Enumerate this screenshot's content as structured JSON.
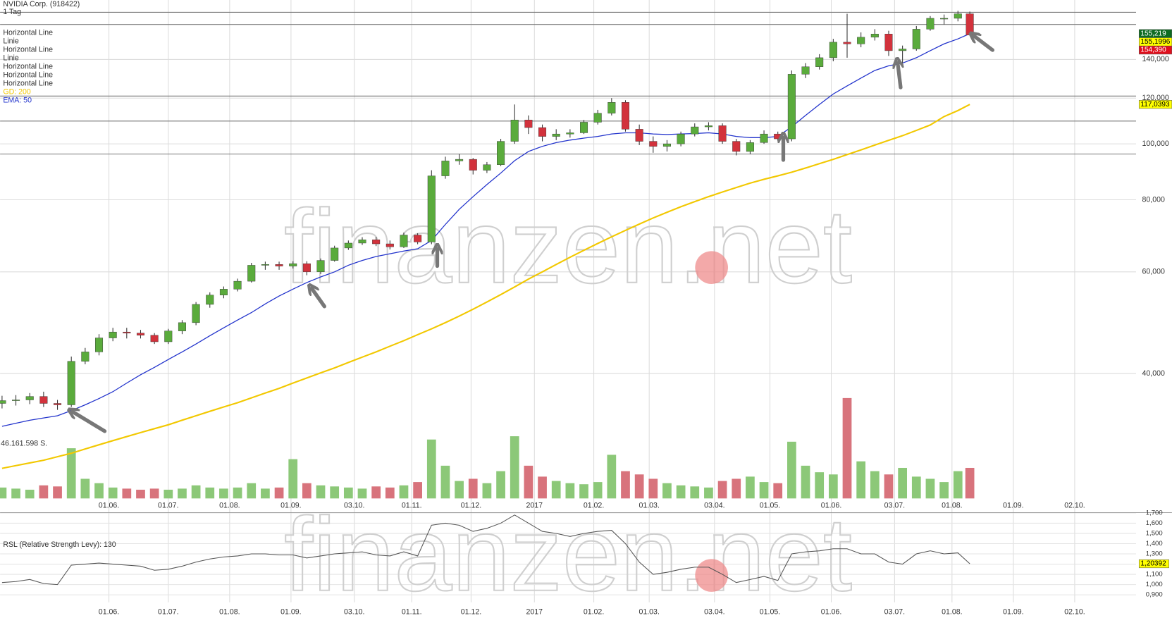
{
  "chart_data": [
    {
      "type": "candlestick",
      "title": "NVIDIA Corp. (918422)",
      "subtitle": "1 Tag",
      "drawings": [
        "Horizontal Line",
        "Linie",
        "Horizontal Line",
        "Linie",
        "Horizontal Line",
        "Horizontal Line",
        "Horizontal Line"
      ],
      "horizontal_levels": [
        169,
        161,
        121,
        109.5,
        96
      ],
      "watermark": "finanzen.net",
      "log_scale": true,
      "grid": true,
      "xlim": [
        "2016-04-07",
        "2017-11-02"
      ],
      "xticks": [
        {
          "value": "2016-06-01",
          "label": "01.06."
        },
        {
          "value": "2016-07-01",
          "label": "01.07."
        },
        {
          "value": "2016-08-01",
          "label": "01.08."
        },
        {
          "value": "2016-09-01",
          "label": "01.09."
        },
        {
          "value": "2016-10-03",
          "label": "03.10."
        },
        {
          "value": "2016-11-01",
          "label": "01.11."
        },
        {
          "value": "2016-12-01",
          "label": "01.12."
        },
        {
          "value": "2017-01-02",
          "label": "2017"
        },
        {
          "value": "2017-02-01",
          "label": "01.02."
        },
        {
          "value": "2017-03-01",
          "label": "01.03."
        },
        {
          "value": "2017-04-03",
          "label": "03.04."
        },
        {
          "value": "2017-05-01",
          "label": "01.05."
        },
        {
          "value": "2017-06-01",
          "label": "01.06."
        },
        {
          "value": "2017-07-03",
          "label": "03.07."
        },
        {
          "value": "2017-08-01",
          "label": "01.08."
        },
        {
          "value": "2017-09-01",
          "label": "01.09."
        },
        {
          "value": "2017-10-02",
          "label": "02.10."
        }
      ],
      "ylim": [
        24.3,
        177.5
      ],
      "yticks": [
        {
          "value": 40,
          "label": "40,000"
        },
        {
          "value": 60,
          "label": "60,000"
        },
        {
          "value": 80,
          "label": "80,000"
        },
        {
          "value": 100,
          "label": "100,000"
        },
        {
          "value": 120,
          "label": "120,000"
        },
        {
          "value": 140,
          "label": "140,000"
        }
      ],
      "up_color": "#5aab3c",
      "down_color": "#d2323c",
      "x": [
        "2016-04-08",
        "2016-04-15",
        "2016-04-22",
        "2016-04-29",
        "2016-05-06",
        "2016-05-13",
        "2016-05-20",
        "2016-05-27",
        "2016-06-03",
        "2016-06-10",
        "2016-06-17",
        "2016-06-24",
        "2016-07-01",
        "2016-07-08",
        "2016-07-15",
        "2016-07-22",
        "2016-07-29",
        "2016-08-05",
        "2016-08-12",
        "2016-08-19",
        "2016-08-26",
        "2016-09-02",
        "2016-09-09",
        "2016-09-16",
        "2016-09-23",
        "2016-09-30",
        "2016-10-07",
        "2016-10-14",
        "2016-10-21",
        "2016-10-28",
        "2016-11-04",
        "2016-11-11",
        "2016-11-18",
        "2016-11-25",
        "2016-12-02",
        "2016-12-09",
        "2016-12-16",
        "2016-12-23",
        "2016-12-30",
        "2017-01-06",
        "2017-01-13",
        "2017-01-20",
        "2017-01-27",
        "2017-02-03",
        "2017-02-10",
        "2017-02-17",
        "2017-02-24",
        "2017-03-03",
        "2017-03-10",
        "2017-03-17",
        "2017-03-24",
        "2017-03-31",
        "2017-04-07",
        "2017-04-14",
        "2017-04-21",
        "2017-04-28",
        "2017-05-05",
        "2017-05-12",
        "2017-05-19",
        "2017-05-26",
        "2017-06-02",
        "2017-06-09",
        "2017-06-16",
        "2017-06-23",
        "2017-06-30",
        "2017-07-07",
        "2017-07-14",
        "2017-07-21",
        "2017-07-28",
        "2017-08-04",
        "2017-08-10"
      ],
      "open": [
        35.5,
        35.9,
        36.0,
        36.5,
        35.5,
        35.3,
        42.0,
        43.6,
        46.1,
        47.2,
        47.0,
        46.6,
        45.4,
        47.4,
        49.0,
        52.7,
        54.7,
        56.0,
        57.8,
        61.6,
        61.8,
        61.4,
        62.0,
        60.0,
        62.8,
        66.0,
        67.3,
        68.2,
        67.1,
        66.3,
        69.5,
        67.6,
        88.0,
        93.4,
        94.0,
        90.0,
        92.0,
        101.0,
        110.0,
        106.7,
        103.0,
        104.0,
        104.5,
        109.0,
        113.0,
        118.0,
        106.0,
        101.0,
        99.0,
        100.0,
        104.0,
        107.0,
        107.5,
        101.0,
        97.0,
        100.5,
        104.0,
        102.0,
        132.0,
        136.0,
        141.0,
        150.0,
        149.0,
        153.0,
        155.0,
        145.0,
        146.0,
        158.0,
        165.0,
        165.0,
        168.0
      ],
      "high": [
        36.6,
        36.7,
        37.0,
        37.2,
        36.0,
        42.8,
        44.3,
        46.8,
        48.0,
        48.0,
        47.6,
        47.0,
        47.8,
        49.5,
        53.2,
        55.3,
        56.6,
        58.4,
        62.2,
        62.5,
        62.5,
        62.6,
        62.6,
        63.3,
        66.6,
        68.0,
        68.9,
        69.0,
        68.0,
        70.2,
        70.0,
        90.0,
        95.0,
        96.0,
        94.5,
        93.0,
        102.0,
        117.0,
        112.0,
        108.0,
        106.0,
        106.0,
        110.0,
        114.5,
        120.0,
        119.0,
        108.0,
        103.0,
        101.5,
        105.0,
        108.5,
        109.0,
        108.5,
        102.0,
        101.5,
        105.5,
        105.0,
        134.0,
        138.0,
        143.0,
        152.0,
        168.0,
        156.0,
        158.0,
        157.0,
        148.0,
        160.0,
        166.5,
        167.5,
        170.0,
        169.5
      ],
      "low": [
        34.8,
        35.2,
        35.4,
        35.0,
        34.6,
        35.0,
        41.5,
        43.0,
        45.5,
        46.0,
        46.0,
        45.0,
        45.0,
        46.8,
        48.5,
        52.0,
        54.0,
        55.5,
        57.5,
        60.5,
        60.5,
        60.8,
        59.2,
        59.5,
        62.5,
        65.5,
        66.8,
        66.5,
        65.6,
        66.0,
        67.0,
        67.0,
        87.0,
        92.0,
        88.5,
        89.0,
        91.5,
        100.0,
        104.0,
        101.0,
        101.5,
        102.5,
        104.0,
        108.0,
        112.0,
        105.0,
        99.5,
        96.5,
        97.0,
        99.0,
        103.0,
        105.5,
        100.0,
        95.5,
        96.0,
        100.0,
        101.0,
        101.0,
        130.0,
        134.5,
        139.0,
        141.0,
        147.0,
        151.0,
        142.0,
        138.0,
        145.0,
        157.0,
        161.0,
        163.0,
        154.0
      ],
      "close": [
        35.9,
        36.0,
        36.5,
        35.5,
        35.3,
        42.0,
        43.6,
        46.1,
        47.2,
        47.0,
        46.6,
        45.4,
        47.4,
        49.0,
        52.7,
        54.7,
        56.0,
        57.8,
        61.6,
        61.8,
        61.4,
        62.0,
        60.0,
        62.8,
        66.0,
        67.3,
        68.2,
        67.1,
        66.3,
        69.5,
        67.6,
        88.0,
        93.4,
        94.0,
        90.0,
        92.0,
        101.0,
        110.0,
        106.7,
        103.0,
        104.0,
        104.5,
        109.0,
        113.0,
        118.0,
        106.0,
        101.0,
        99.0,
        100.0,
        104.0,
        107.0,
        107.5,
        101.0,
        97.0,
        100.5,
        104.0,
        102.0,
        132.0,
        136.0,
        141.0,
        150.0,
        149.0,
        153.0,
        155.0,
        145.0,
        146.0,
        158.0,
        165.0,
        165.0,
        168.0,
        154.39
      ],
      "series": [
        {
          "name": "GD: 200",
          "color": "#f2c800",
          "values": [
            27.4,
            27.7,
            28.0,
            28.3,
            28.7,
            29.1,
            29.6,
            30.1,
            30.6,
            31.1,
            31.6,
            32.1,
            32.6,
            33.2,
            33.8,
            34.4,
            35.0,
            35.6,
            36.3,
            37.0,
            37.7,
            38.5,
            39.3,
            40.1,
            40.9,
            41.8,
            42.7,
            43.6,
            44.6,
            45.6,
            46.7,
            47.8,
            49.0,
            50.3,
            51.7,
            53.2,
            54.8,
            56.5,
            58.3,
            60.0,
            61.8,
            63.6,
            65.4,
            67.2,
            69.0,
            70.8,
            72.6,
            74.4,
            76.1,
            77.8,
            79.4,
            81.0,
            82.5,
            84.0,
            85.5,
            86.8,
            88.0,
            89.3,
            90.8,
            92.4,
            94.0,
            95.8,
            97.6,
            99.5,
            101.4,
            103.3,
            105.5,
            107.8,
            111.5,
            114.2,
            117.0393
          ]
        },
        {
          "name": "EMA: 50",
          "color": "#2233cc",
          "values": [
            32.4,
            32.8,
            33.2,
            33.5,
            33.8,
            34.5,
            35.3,
            36.2,
            37.2,
            38.5,
            39.8,
            41.0,
            42.3,
            43.6,
            45.0,
            46.5,
            48.0,
            49.5,
            51.0,
            52.8,
            54.5,
            56.0,
            57.5,
            58.8,
            60.0,
            61.6,
            62.8,
            63.8,
            64.5,
            65.2,
            65.8,
            68.0,
            72.5,
            77.0,
            81.0,
            85.0,
            89.0,
            93.5,
            97.0,
            99.0,
            100.5,
            101.5,
            102.3,
            103.0,
            104.0,
            104.5,
            104.5,
            104.0,
            103.8,
            104.0,
            104.2,
            104.5,
            104.0,
            103.0,
            102.5,
            102.5,
            103.0,
            107.0,
            112.0,
            117.0,
            122.0,
            126.0,
            130.0,
            134.0,
            136.5,
            138.0,
            141.0,
            145.0,
            149.0,
            152.0,
            155.1996
          ]
        }
      ],
      "price_tags": [
        {
          "value": 155.219,
          "label": "155,219",
          "color": "#0d6b22"
        },
        {
          "value": 155.1996,
          "label": "155,1996",
          "color": "#ffff00"
        },
        {
          "value": 154.39,
          "label": "154,390",
          "color": "#e0101e"
        },
        {
          "value": 117.0393,
          "label": "117,0393",
          "color": "#ffff00"
        }
      ],
      "volume": {
        "label": "46.161.598 S.",
        "ylim": [
          0,
          100
        ],
        "up_color": "#8cc878",
        "down_color": "#d8737c",
        "values": [
          10,
          9,
          8,
          12,
          11,
          46,
          18,
          14,
          10,
          9,
          8,
          9,
          8,
          9,
          12,
          10,
          9,
          10,
          14,
          9,
          10,
          36,
          14,
          12,
          11,
          10,
          9,
          11,
          10,
          12,
          15,
          54,
          30,
          16,
          18,
          14,
          25,
          57,
          30,
          20,
          16,
          14,
          13,
          15,
          40,
          25,
          22,
          18,
          14,
          12,
          11,
          10,
          16,
          18,
          20,
          15,
          14,
          52,
          30,
          24,
          22,
          92,
          34,
          25,
          22,
          28,
          20,
          18,
          15,
          25,
          28
        ]
      }
    },
    {
      "type": "line",
      "title": "RSL (Relative Strength Levy): 130",
      "watermark": "finanzen.net",
      "color": "#555555",
      "ylim": [
        0.827,
        1.703
      ],
      "yticks": [
        {
          "value": 0.9,
          "label": "0,900"
        },
        {
          "value": 1.0,
          "label": "1,000"
        },
        {
          "value": 1.1,
          "label": "1,100"
        },
        {
          "value": 1.2,
          "label": "1,200"
        },
        {
          "value": 1.3,
          "label": "1,300"
        },
        {
          "value": 1.4,
          "label": "1,400"
        },
        {
          "value": 1.5,
          "label": "1,500"
        },
        {
          "value": 1.6,
          "label": "1,600"
        },
        {
          "value": 1.7,
          "label": "1,700"
        }
      ],
      "tag": {
        "value": 1.20392,
        "label": "1,20392",
        "color": "#ffff00"
      },
      "values": [
        1.02,
        1.03,
        1.05,
        1.01,
        1.0,
        1.19,
        1.2,
        1.21,
        1.2,
        1.19,
        1.18,
        1.14,
        1.15,
        1.18,
        1.22,
        1.25,
        1.27,
        1.28,
        1.3,
        1.3,
        1.29,
        1.29,
        1.26,
        1.28,
        1.3,
        1.31,
        1.32,
        1.29,
        1.28,
        1.32,
        1.28,
        1.58,
        1.6,
        1.58,
        1.52,
        1.55,
        1.6,
        1.68,
        1.6,
        1.52,
        1.5,
        1.47,
        1.5,
        1.52,
        1.53,
        1.4,
        1.22,
        1.1,
        1.12,
        1.15,
        1.17,
        1.17,
        1.1,
        1.02,
        1.05,
        1.08,
        1.04,
        1.3,
        1.32,
        1.33,
        1.35,
        1.35,
        1.3,
        1.3,
        1.22,
        1.2,
        1.3,
        1.33,
        1.3,
        1.31,
        1.20392
      ]
    }
  ]
}
